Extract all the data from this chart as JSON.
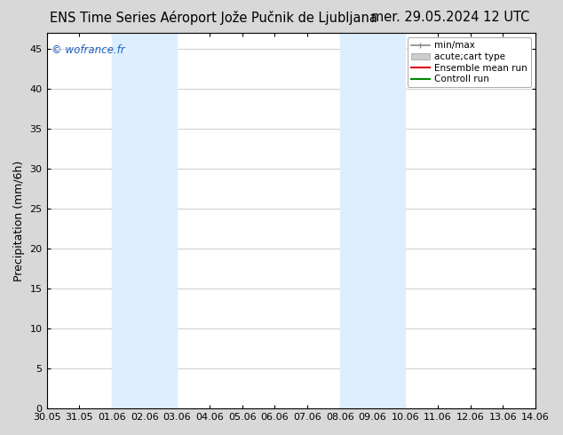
{
  "title_left": "ENS Time Series Aéroport Jože Pučnik de Ljubljana",
  "title_right": "mer. 29.05.2024 12 UTC",
  "ylabel": "Precipitation (mm/6h)",
  "ylim": [
    0,
    47
  ],
  "yticks": [
    0,
    5,
    10,
    15,
    20,
    25,
    30,
    35,
    40,
    45
  ],
  "xtick_labels": [
    "30.05",
    "31.05",
    "01.06",
    "02.06",
    "03.06",
    "04.06",
    "05.06",
    "06.06",
    "07.06",
    "08.06",
    "09.06",
    "10.06",
    "11.06",
    "12.06",
    "13.06",
    "14.06"
  ],
  "xtick_positions": [
    0,
    24,
    48,
    72,
    96,
    120,
    144,
    168,
    192,
    216,
    240,
    264,
    288,
    312,
    336,
    360
  ],
  "xlim": [
    0,
    360
  ],
  "shade_bands": [
    {
      "start": 48,
      "end": 96
    },
    {
      "start": 216,
      "end": 264
    }
  ],
  "shade_color": "#ddeeff",
  "fig_bg_color": "#d8d8d8",
  "plot_bg_color": "#ffffff",
  "watermark": "© wofrance.fr",
  "watermark_color": "#1a5fbf",
  "grid_color": "#bbbbbb",
  "title_fontsize": 10.5,
  "ylabel_fontsize": 9,
  "tick_fontsize": 8,
  "legend_fontsize": 7.5,
  "legend_items": [
    {
      "label": "min/max",
      "color": "#888888"
    },
    {
      "label": "acute;cart type",
      "color": "#cccccc"
    },
    {
      "label": "Ensemble mean run",
      "color": "#dd0000"
    },
    {
      "label": "Controll run",
      "color": "#008800"
    }
  ]
}
